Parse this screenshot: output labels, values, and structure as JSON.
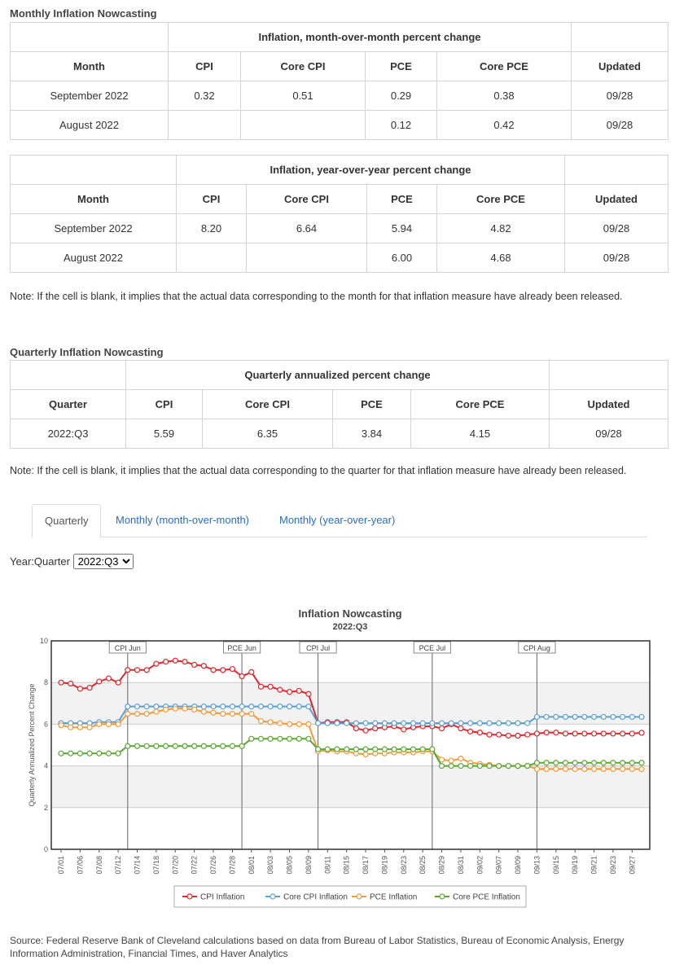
{
  "monthly": {
    "title": "Monthly Inflation Nowcasting",
    "mom": {
      "caption": "Inflation, month-over-month percent change",
      "headers": [
        "Month",
        "CPI",
        "Core CPI",
        "PCE",
        "Core PCE",
        "Updated"
      ],
      "rows": [
        [
          "September 2022",
          "0.32",
          "0.51",
          "0.29",
          "0.38",
          "09/28"
        ],
        [
          "August 2022",
          "",
          "",
          "0.12",
          "0.42",
          "09/28"
        ]
      ]
    },
    "yoy": {
      "caption": "Inflation, year-over-year percent change",
      "headers": [
        "Month",
        "CPI",
        "Core CPI",
        "PCE",
        "Core PCE",
        "Updated"
      ],
      "rows": [
        [
          "September 2022",
          "8.20",
          "6.64",
          "5.94",
          "4.82",
          "09/28"
        ],
        [
          "August 2022",
          "",
          "",
          "6.00",
          "4.68",
          "09/28"
        ]
      ]
    },
    "note": "Note: If the cell is blank, it implies that the actual data corresponding to the month for that inflation measure have already been released."
  },
  "quarterly": {
    "title": "Quarterly Inflation Nowcasting",
    "table": {
      "caption": "Quarterly annualized percent change",
      "headers": [
        "Quarter",
        "CPI",
        "Core CPI",
        "PCE",
        "Core PCE",
        "Updated"
      ],
      "rows": [
        [
          "2022:Q3",
          "5.59",
          "6.35",
          "3.84",
          "4.15",
          "09/28"
        ]
      ]
    },
    "note": "Note: If the cell is blank, it implies that the actual data corresponding to the quarter for that inflation measure have already been released."
  },
  "tabs": [
    {
      "label": "Quarterly",
      "active": true
    },
    {
      "label": "Monthly (month-over-month)",
      "active": false
    },
    {
      "label": "Monthly (year-over-year)",
      "active": false
    }
  ],
  "selector": {
    "label": "Year:Quarter",
    "value": "2022:Q3"
  },
  "chart_data": {
    "type": "line",
    "title": "Inflation Nowcasting",
    "subtitle": "2022:Q3",
    "ylabel": "Quarterly Annualized Percent Change",
    "ylim": [
      0,
      10
    ],
    "yticks": [
      0,
      2,
      4,
      6,
      8,
      10
    ],
    "grid": "alternating horizontal bands",
    "legend_position": "bottom",
    "x": [
      "07/01",
      "07/05",
      "07/06",
      "07/07",
      "07/08",
      "07/11",
      "07/12",
      "07/13",
      "07/14",
      "07/15",
      "07/18",
      "07/19",
      "07/20",
      "07/21",
      "07/22",
      "07/25",
      "07/26",
      "07/27",
      "07/28",
      "07/29",
      "08/01",
      "08/02",
      "08/03",
      "08/04",
      "08/05",
      "08/08",
      "08/09",
      "08/10",
      "08/11",
      "08/12",
      "08/15",
      "08/16",
      "08/17",
      "08/18",
      "08/19",
      "08/22",
      "08/23",
      "08/24",
      "08/25",
      "08/26",
      "08/29",
      "08/30",
      "08/31",
      "09/01",
      "09/02",
      "09/06",
      "09/07",
      "09/08",
      "09/09",
      "09/12",
      "09/13",
      "09/14",
      "09/15",
      "09/16",
      "09/19",
      "09/20",
      "09/21",
      "09/22",
      "09/23",
      "09/26",
      "09/27",
      "09/28"
    ],
    "xtick_labels": [
      "07/01",
      "07/06",
      "07/08",
      "07/12",
      "07/14",
      "07/18",
      "07/20",
      "07/22",
      "07/26",
      "07/28",
      "08/01",
      "08/03",
      "08/05",
      "08/09",
      "08/11",
      "08/15",
      "08/17",
      "08/19",
      "08/23",
      "08/25",
      "08/29",
      "08/31",
      "09/02",
      "09/07",
      "09/09",
      "09/13",
      "09/15",
      "09/19",
      "09/21",
      "09/23",
      "09/27"
    ],
    "annotations": [
      {
        "label": "CPI Jun",
        "x": "07/13"
      },
      {
        "label": "PCE Jun",
        "x": "07/29"
      },
      {
        "label": "CPI Jul",
        "x": "08/10"
      },
      {
        "label": "PCE Jul",
        "x": "08/26"
      },
      {
        "label": "CPI Aug",
        "x": "09/13"
      }
    ],
    "series": [
      {
        "name": "CPI Inflation",
        "color": "#e0262b",
        "values": [
          8.0,
          7.95,
          7.7,
          7.75,
          8.05,
          8.2,
          8.0,
          8.6,
          8.6,
          8.6,
          8.9,
          9.0,
          9.05,
          9.0,
          8.85,
          8.8,
          8.6,
          8.6,
          8.65,
          8.3,
          8.5,
          7.8,
          7.8,
          7.65,
          7.55,
          7.6,
          7.45,
          6.05,
          6.1,
          6.1,
          6.1,
          5.8,
          5.7,
          5.8,
          5.85,
          5.9,
          5.75,
          5.85,
          5.9,
          5.9,
          5.8,
          6.0,
          5.8,
          5.65,
          5.6,
          5.5,
          5.5,
          5.45,
          5.45,
          5.5,
          5.55,
          5.6,
          5.6,
          5.55,
          5.55,
          5.55,
          5.55,
          5.55,
          5.55,
          5.55,
          5.55,
          5.59
        ]
      },
      {
        "name": "Core CPI Inflation",
        "color": "#5a9fd4",
        "values": [
          6.05,
          6.05,
          6.05,
          6.05,
          6.1,
          6.1,
          6.1,
          6.85,
          6.85,
          6.85,
          6.85,
          6.85,
          6.85,
          6.85,
          6.85,
          6.85,
          6.85,
          6.85,
          6.85,
          6.85,
          6.85,
          6.85,
          6.85,
          6.85,
          6.85,
          6.85,
          6.85,
          6.05,
          6.05,
          6.05,
          6.05,
          6.05,
          6.05,
          6.05,
          6.05,
          6.05,
          6.05,
          6.05,
          6.05,
          6.05,
          6.05,
          6.05,
          6.05,
          6.05,
          6.05,
          6.05,
          6.05,
          6.05,
          6.05,
          6.05,
          6.35,
          6.35,
          6.35,
          6.35,
          6.35,
          6.35,
          6.35,
          6.35,
          6.35,
          6.35,
          6.35,
          6.35
        ]
      },
      {
        "name": "PCE Inflation",
        "color": "#f39a3a",
        "values": [
          5.95,
          5.85,
          5.85,
          5.85,
          6.0,
          6.0,
          6.0,
          6.5,
          6.5,
          6.5,
          6.6,
          6.7,
          6.75,
          6.75,
          6.7,
          6.6,
          6.55,
          6.5,
          6.5,
          6.5,
          6.5,
          6.15,
          6.1,
          6.05,
          6.0,
          6.0,
          6.0,
          4.7,
          4.75,
          4.7,
          4.7,
          4.6,
          4.55,
          4.6,
          4.6,
          4.65,
          4.65,
          4.65,
          4.7,
          4.7,
          4.3,
          4.25,
          4.35,
          4.15,
          4.1,
          4.05,
          4.0,
          4.0,
          4.0,
          4.0,
          3.85,
          3.85,
          3.85,
          3.85,
          3.85,
          3.85,
          3.85,
          3.85,
          3.85,
          3.85,
          3.85,
          3.84
        ]
      },
      {
        "name": "Core PCE Inflation",
        "color": "#5aa832",
        "values": [
          4.6,
          4.6,
          4.6,
          4.6,
          4.6,
          4.6,
          4.6,
          4.95,
          4.95,
          4.95,
          4.95,
          4.95,
          4.95,
          4.95,
          4.95,
          4.95,
          4.95,
          4.95,
          4.95,
          4.95,
          5.3,
          5.3,
          5.3,
          5.3,
          5.3,
          5.3,
          5.3,
          4.8,
          4.8,
          4.8,
          4.8,
          4.8,
          4.8,
          4.8,
          4.8,
          4.8,
          4.8,
          4.8,
          4.8,
          4.8,
          4.0,
          4.0,
          4.0,
          4.0,
          4.0,
          4.0,
          4.0,
          4.0,
          4.0,
          4.0,
          4.15,
          4.15,
          4.15,
          4.15,
          4.15,
          4.15,
          4.15,
          4.15,
          4.15,
          4.15,
          4.15,
          4.15
        ]
      }
    ]
  },
  "source": "Source: Federal Reserve Bank of Cleveland calculations based on data from Bureau of Labor Statistics, Bureau of Economic Analysis, Energy Information Administration, Financial Times, and Haver Analytics"
}
